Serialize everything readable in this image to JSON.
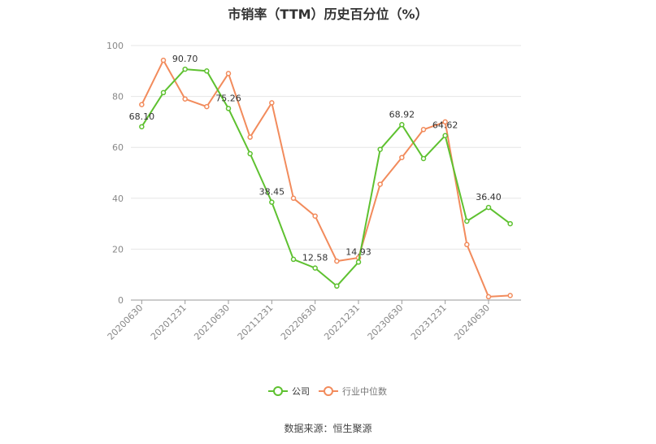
{
  "chart_data": {
    "type": "line",
    "title": "市销率（TTM）历史百分位（%）",
    "xlabel": "",
    "ylabel": "",
    "ylim": [
      0,
      100
    ],
    "yticks": [
      0,
      20,
      40,
      60,
      80,
      100
    ],
    "x": [
      "20200630",
      "20200930",
      "20201231",
      "20210331",
      "20210630",
      "20210930",
      "20211231",
      "20220331",
      "20220630",
      "20220930",
      "20221231",
      "20230331",
      "20230630",
      "20230930",
      "20231231",
      "20240331",
      "20240630",
      "20240930"
    ],
    "x_tick_labels": [
      "20200630",
      "20201231",
      "20210630",
      "20211231",
      "20220630",
      "20221231",
      "20230630",
      "20231231",
      "20240630"
    ],
    "series": [
      {
        "name": "公司",
        "color": "#5ec130",
        "values": [
          68.1,
          81.5,
          90.7,
          90.0,
          75.26,
          57.5,
          38.45,
          16.0,
          12.58,
          5.5,
          14.93,
          59.2,
          68.92,
          55.6,
          64.62,
          31.0,
          36.4,
          30.0
        ],
        "labels": {
          "0": "68.10",
          "2": "90.70",
          "4": "75.26",
          "6": "38.45",
          "8": "12.58",
          "10": "14.93",
          "12": "68.92",
          "14": "64.62",
          "16": "36.40"
        }
      },
      {
        "name": "行业中位数",
        "color": "#f28b5c",
        "values": [
          76.8,
          94.2,
          79.0,
          76.0,
          89.0,
          64.0,
          77.5,
          40.0,
          33.0,
          15.3,
          16.6,
          45.5,
          56.0,
          67.0,
          70.0,
          21.8,
          1.3,
          1.8
        ]
      }
    ],
    "grid": true,
    "legend_position": "bottom-center"
  },
  "source": "数据来源：恒生聚源"
}
